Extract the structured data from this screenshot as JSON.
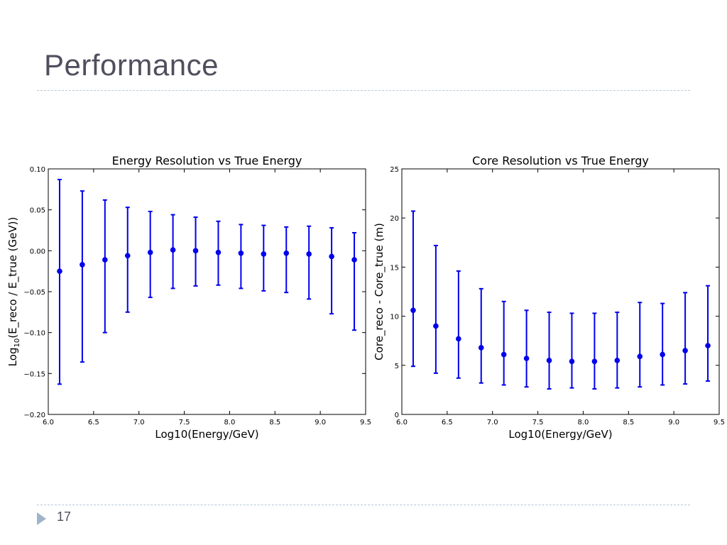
{
  "slide": {
    "title": "Performance",
    "page_number": "17"
  },
  "colors": {
    "marker": "#0000ee",
    "title_text": "#4f4f5e",
    "divider": "#b8c7d6"
  },
  "chart_data": [
    {
      "type": "scatter",
      "error_bars": true,
      "title": "Energy Resolution vs True Energy",
      "xlabel": "Log10(Energy/GeV)",
      "ylabel_main": "Log",
      "ylabel_sub": "10",
      "ylabel_rest": "(E_reco  / E_true (GeV))",
      "xlim": [
        6.0,
        9.5
      ],
      "ylim": [
        -0.2,
        0.1
      ],
      "xticks": [
        6.0,
        6.5,
        7.0,
        7.5,
        8.0,
        8.5,
        9.0,
        9.5
      ],
      "xtick_labels": [
        "6.0",
        "6.5",
        "7.0",
        "7.5",
        "8.0",
        "8.5",
        "9.0",
        "9.5"
      ],
      "yticks": [
        -0.2,
        -0.15,
        -0.1,
        -0.05,
        0.0,
        0.05,
        0.1
      ],
      "ytick_labels": [
        "−0.20",
        "−0.15",
        "−0.10",
        "−0.05",
        "0.00",
        "0.05",
        "0.10"
      ],
      "x": [
        6.125,
        6.375,
        6.625,
        6.875,
        7.125,
        7.375,
        7.625,
        7.875,
        8.125,
        8.375,
        8.625,
        8.875,
        9.125,
        9.375
      ],
      "y": [
        -0.025,
        -0.017,
        -0.011,
        -0.006,
        -0.002,
        0.001,
        0.0,
        -0.002,
        -0.003,
        -0.004,
        -0.003,
        -0.004,
        -0.007,
        -0.011
      ],
      "err_low": [
        -0.163,
        -0.136,
        -0.1,
        -0.075,
        -0.057,
        -0.046,
        -0.043,
        -0.042,
        -0.046,
        -0.049,
        -0.051,
        -0.059,
        -0.077,
        -0.097
      ],
      "err_high": [
        0.087,
        0.073,
        0.062,
        0.053,
        0.048,
        0.044,
        0.041,
        0.036,
        0.032,
        0.031,
        0.029,
        0.03,
        0.028,
        0.022
      ],
      "grid": false
    },
    {
      "type": "scatter",
      "error_bars": true,
      "title": "Core Resolution vs True Energy",
      "xlabel": "Log10(Energy/GeV)",
      "ylabel_main": "Core_reco  - Core_true (m)",
      "ylabel_sub": "",
      "ylabel_rest": "",
      "xlim": [
        6.0,
        9.5
      ],
      "ylim": [
        0,
        25
      ],
      "xticks": [
        6.0,
        6.5,
        7.0,
        7.5,
        8.0,
        8.5,
        9.0,
        9.5
      ],
      "xtick_labels": [
        "6.0",
        "6.5",
        "7.0",
        "7.5",
        "8.0",
        "8.5",
        "9.0",
        "9.5"
      ],
      "yticks": [
        0,
        5,
        10,
        15,
        20,
        25
      ],
      "ytick_labels": [
        "0",
        "5",
        "10",
        "15",
        "20",
        "25"
      ],
      "x": [
        6.125,
        6.375,
        6.625,
        6.875,
        7.125,
        7.375,
        7.625,
        7.875,
        8.125,
        8.375,
        8.625,
        8.875,
        9.125,
        9.375
      ],
      "y": [
        10.6,
        9.0,
        7.7,
        6.8,
        6.1,
        5.7,
        5.5,
        5.4,
        5.4,
        5.5,
        5.9,
        6.1,
        6.5,
        7.0
      ],
      "err_low": [
        4.9,
        4.2,
        3.7,
        3.2,
        3.0,
        2.8,
        2.6,
        2.7,
        2.6,
        2.7,
        2.8,
        3.0,
        3.1,
        3.4
      ],
      "err_high": [
        20.7,
        17.2,
        14.6,
        12.8,
        11.5,
        10.6,
        10.4,
        10.3,
        10.3,
        10.4,
        11.4,
        11.3,
        12.4,
        13.1
      ],
      "grid": false
    }
  ]
}
